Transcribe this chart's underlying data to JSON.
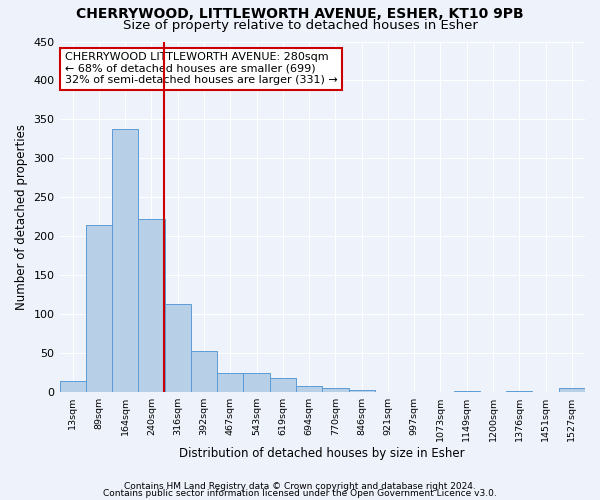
{
  "title1": "CHERRYWOOD, LITTLEWORTH AVENUE, ESHER, KT10 9PB",
  "title2": "Size of property relative to detached houses in Esher",
  "xlabel": "Distribution of detached houses by size in Esher",
  "ylabel": "Number of detached properties",
  "bin_labels": [
    "13sqm",
    "89sqm",
    "164sqm",
    "240sqm",
    "316sqm",
    "392sqm",
    "467sqm",
    "543sqm",
    "619sqm",
    "694sqm",
    "770sqm",
    "846sqm",
    "921sqm",
    "997sqm",
    "1073sqm",
    "1149sqm",
    "1200sqm",
    "1376sqm",
    "1451sqm",
    "1527sqm"
  ],
  "bar_heights": [
    15,
    215,
    338,
    222,
    113,
    53,
    25,
    25,
    18,
    8,
    5,
    3,
    0,
    0,
    0,
    2,
    0,
    2,
    0,
    5
  ],
  "bar_color": "#b8cfe8",
  "bar_edgecolor": "#5b9bd5",
  "property_bin_index": 3,
  "vline_color": "#cc0000",
  "annotation_line1": "CHERRYWOOD LITTLEWORTH AVENUE: 280sqm",
  "annotation_line2": "← 68% of detached houses are smaller (699)",
  "annotation_line3": "32% of semi-detached houses are larger (331) →",
  "annotation_box_edgecolor": "#cc0000",
  "annotation_box_facecolor": "#ffffff",
  "footer1": "Contains HM Land Registry data © Crown copyright and database right 2024.",
  "footer2": "Contains public sector information licensed under the Open Government Licence v3.0.",
  "ylim": [
    0,
    450
  ],
  "background_color": "#eef2fb",
  "grid_color": "#ffffff",
  "title1_fontsize": 10,
  "title2_fontsize": 9.5,
  "xlabel_fontsize": 8.5,
  "ylabel_fontsize": 8.5,
  "annotation_fontsize": 8,
  "footer_fontsize": 6.5
}
